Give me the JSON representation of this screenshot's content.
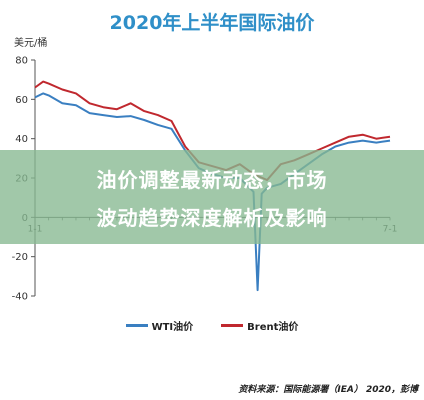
{
  "colors": {
    "title": "#2f8fc8",
    "wti": "#3a7fc1",
    "brent": "#c0282e",
    "overlay": "#87b991",
    "axis": "#555555"
  },
  "unit_label": "美元/桶",
  "overlay_text": {
    "line1": "油价调整最新动态，市场",
    "line2": "波动趋势深度解析及影响"
  },
  "source_note": "资料来源：国际能源署（IEA） 2020，彭博",
  "chart_data": {
    "type": "line",
    "title": "2020年上半年国际油价",
    "xlabel": "",
    "ylabel": "美元/桶",
    "ylim": [
      -40,
      80
    ],
    "yticks": [
      80,
      60,
      40,
      20,
      0,
      -20,
      -40
    ],
    "xlim": [
      0,
      26
    ],
    "x_ticks": [
      {
        "x": 0,
        "label": "1-1"
      },
      {
        "x": 26,
        "label": "7-1"
      }
    ],
    "grid": false,
    "legend_position": "bottom",
    "series": [
      {
        "name": "WTI油价",
        "color": "#3a7fc1",
        "points": [
          [
            0,
            61
          ],
          [
            0.6,
            63
          ],
          [
            1,
            62
          ],
          [
            2,
            58
          ],
          [
            3,
            57
          ],
          [
            4,
            53
          ],
          [
            5,
            52
          ],
          [
            6,
            51
          ],
          [
            7,
            51.5
          ],
          [
            8,
            49.5
          ],
          [
            9,
            47
          ],
          [
            10,
            45
          ],
          [
            11,
            34
          ],
          [
            12,
            25
          ],
          [
            13,
            22
          ],
          [
            14,
            20
          ],
          [
            15,
            20
          ],
          [
            16,
            13
          ],
          [
            16.3,
            -37
          ],
          [
            16.6,
            12
          ],
          [
            17,
            15
          ],
          [
            18,
            17
          ],
          [
            19,
            22
          ],
          [
            20,
            27
          ],
          [
            21,
            32
          ],
          [
            22,
            36
          ],
          [
            23,
            38
          ],
          [
            24,
            39
          ],
          [
            25,
            38
          ],
          [
            26,
            39
          ]
        ]
      },
      {
        "name": "Brent油价",
        "color": "#c0282e",
        "points": [
          [
            0,
            66
          ],
          [
            0.6,
            69
          ],
          [
            1,
            68
          ],
          [
            2,
            65
          ],
          [
            3,
            63
          ],
          [
            4,
            58
          ],
          [
            5,
            56
          ],
          [
            6,
            55
          ],
          [
            7,
            58
          ],
          [
            8,
            54
          ],
          [
            9,
            52
          ],
          [
            10,
            49
          ],
          [
            11,
            36
          ],
          [
            12,
            28
          ],
          [
            13,
            26
          ],
          [
            14,
            24
          ],
          [
            15,
            27
          ],
          [
            16,
            22
          ],
          [
            17,
            19
          ],
          [
            18,
            27
          ],
          [
            19,
            29
          ],
          [
            20,
            32
          ],
          [
            21,
            35
          ],
          [
            22,
            38
          ],
          [
            23,
            41
          ],
          [
            24,
            42
          ],
          [
            25,
            40
          ],
          [
            26,
            41
          ]
        ]
      }
    ]
  }
}
